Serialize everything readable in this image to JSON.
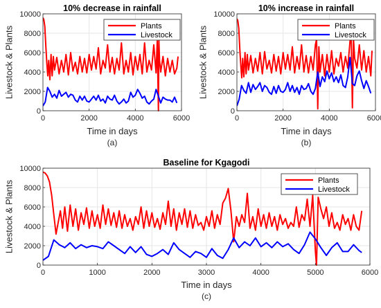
{
  "colors": {
    "plants": "#ff0000",
    "livestock": "#0000ff",
    "grid": "#e6e6e6",
    "axis": "#262626"
  },
  "chart_data": [
    {
      "id": "a",
      "type": "line",
      "title": "10% decrease in rainfall",
      "caption": "(a)",
      "xlabel": "Time in days",
      "ylabel": "Livestock & Plants",
      "xlim": [
        0,
        6000
      ],
      "ylim": [
        0,
        10000
      ],
      "xticks": [
        "0",
        "2000",
        "4000",
        "6000"
      ],
      "yticks": [
        "0",
        "2000",
        "4000",
        "6000",
        "8000",
        "10000"
      ],
      "grid": true,
      "legend_position": "top-right",
      "series": [
        {
          "name": "Plants",
          "color": "#ff0000",
          "x": [
            0,
            40,
            80,
            130,
            170,
            210,
            250,
            300,
            350,
            400,
            450,
            500,
            600,
            700,
            800,
            900,
            1000,
            1100,
            1200,
            1300,
            1400,
            1500,
            1600,
            1700,
            1800,
            1900,
            2000,
            2100,
            2200,
            2300,
            2400,
            2500,
            2600,
            2700,
            2800,
            2900,
            3000,
            3100,
            3200,
            3300,
            3400,
            3500,
            3600,
            3700,
            3800,
            3900,
            4000,
            4100,
            4200,
            4300,
            4400,
            4500,
            4600,
            4700,
            4800,
            4900,
            4950,
            5000,
            5020,
            5050,
            5100,
            5200,
            5300,
            5400,
            5500,
            5600,
            5700,
            5800,
            5850
          ],
          "y": [
            9600,
            9400,
            8700,
            6500,
            4800,
            3600,
            5200,
            3200,
            5800,
            3600,
            5600,
            4200,
            5500,
            3800,
            5200,
            4000,
            5800,
            3700,
            6000,
            4100,
            5000,
            3800,
            5600,
            4000,
            5400,
            3900,
            5800,
            4200,
            5600,
            4300,
            6500,
            3800,
            5200,
            4400,
            6800,
            4000,
            5500,
            3800,
            5400,
            4200,
            7000,
            3800,
            5200,
            4000,
            6000,
            3700,
            5600,
            4200,
            5800,
            3800,
            7000,
            4000,
            5200,
            4200,
            6800,
            3900,
            7200,
            0,
            7400,
            5200,
            4000,
            5600,
            3600,
            5400,
            4000,
            5200,
            3800,
            4400,
            5600
          ]
        },
        {
          "name": "Livestock",
          "color": "#0000ff",
          "x": [
            0,
            100,
            200,
            300,
            400,
            500,
            600,
            700,
            800,
            900,
            1000,
            1100,
            1200,
            1300,
            1400,
            1500,
            1600,
            1700,
            1800,
            1900,
            2000,
            2100,
            2200,
            2300,
            2400,
            2500,
            2600,
            2700,
            2800,
            2900,
            3000,
            3100,
            3200,
            3300,
            3400,
            3500,
            3600,
            3700,
            3800,
            3900,
            4000,
            4100,
            4200,
            4300,
            4400,
            4500,
            4600,
            4700,
            4800,
            4900,
            5000,
            5100,
            5200,
            5300,
            5400,
            5500,
            5600,
            5700,
            5800
          ],
          "y": [
            500,
            900,
            2400,
            2000,
            1400,
            1700,
            1300,
            2100,
            1500,
            1700,
            1900,
            1400,
            1700,
            1600,
            1100,
            900,
            1500,
            1100,
            1500,
            1000,
            900,
            1200,
            1500,
            1100,
            1600,
            1000,
            1200,
            800,
            1500,
            1200,
            1100,
            1600,
            1000,
            700,
            900,
            1200,
            800,
            1000,
            1900,
            1400,
            1600,
            2200,
            1800,
            1300,
            1500,
            900,
            700,
            1000,
            1200,
            2200,
            1500,
            800,
            1400,
            1200,
            1100,
            1100,
            900,
            1400,
            800
          ]
        }
      ]
    },
    {
      "id": "b",
      "type": "line",
      "title": "10% increase in rainfall",
      "caption": "(b)",
      "xlabel": "Time in days",
      "ylabel": "Livestock & Plants",
      "xlim": [
        0,
        6000
      ],
      "ylim": [
        0,
        10000
      ],
      "xticks": [
        "0",
        "2000",
        "4000",
        "6000"
      ],
      "yticks": [
        "0",
        "2000",
        "4000",
        "6000",
        "8000",
        "10000"
      ],
      "grid": true,
      "legend_position": "top-right",
      "series": [
        {
          "name": "Plants",
          "color": "#ff0000",
          "x": [
            0,
            40,
            80,
            130,
            170,
            210,
            250,
            300,
            350,
            400,
            450,
            500,
            600,
            700,
            800,
            900,
            1000,
            1100,
            1200,
            1300,
            1400,
            1500,
            1600,
            1700,
            1800,
            1900,
            2000,
            2100,
            2200,
            2300,
            2400,
            2500,
            2600,
            2700,
            2800,
            2900,
            3000,
            3100,
            3200,
            3300,
            3400,
            3450,
            3500,
            3550,
            3600,
            3700,
            3800,
            3900,
            4000,
            4100,
            4200,
            4300,
            4400,
            4500,
            4600,
            4700,
            4800,
            4900,
            4950,
            5000,
            5050,
            5100,
            5200,
            5300,
            5400,
            5500,
            5600,
            5700,
            5800,
            5850
          ],
          "y": [
            9500,
            9300,
            8500,
            6200,
            4600,
            3400,
            5400,
            3500,
            6000,
            3800,
            5800,
            4200,
            5700,
            3900,
            5400,
            4100,
            6000,
            3800,
            6100,
            4300,
            5200,
            3900,
            5800,
            4100,
            5600,
            3800,
            6000,
            4300,
            5800,
            4200,
            6600,
            3900,
            5600,
            4300,
            6800,
            4000,
            5700,
            3900,
            5600,
            4200,
            6800,
            7400,
            200,
            6600,
            4000,
            5800,
            3600,
            5800,
            4000,
            6200,
            3800,
            5400,
            4600,
            6000,
            4000,
            5600,
            4400,
            7200,
            7600,
            300,
            7400,
            5400,
            4400,
            6800,
            4200,
            6200,
            4000,
            5600,
            3600,
            6200
          ]
        },
        {
          "name": "Livestock",
          "color": "#0000ff",
          "x": [
            0,
            100,
            200,
            300,
            400,
            500,
            600,
            700,
            800,
            900,
            1000,
            1100,
            1200,
            1300,
            1400,
            1500,
            1600,
            1700,
            1800,
            1900,
            2000,
            2100,
            2200,
            2300,
            2400,
            2500,
            2600,
            2700,
            2800,
            2900,
            3000,
            3100,
            3200,
            3300,
            3400,
            3500,
            3600,
            3700,
            3800,
            3900,
            4000,
            4100,
            4200,
            4300,
            4400,
            4500,
            4600,
            4700,
            4800,
            4900,
            5000,
            5100,
            5200,
            5300,
            5400,
            5500,
            5600,
            5700,
            5800
          ],
          "y": [
            500,
            1200,
            2600,
            2100,
            1800,
            2900,
            1900,
            2700,
            2200,
            2500,
            2900,
            2000,
            2600,
            2400,
            1900,
            1700,
            2500,
            1800,
            2600,
            2000,
            1900,
            2200,
            2900,
            2000,
            2600,
            1900,
            2400,
            1700,
            2600,
            2200,
            2300,
            2800,
            2000,
            1700,
            2300,
            4000,
            2500,
            3500,
            3000,
            4100,
            3300,
            3900,
            3000,
            3500,
            2900,
            3700,
            2600,
            2400,
            3500,
            5500,
            2800,
            2600,
            3600,
            4100,
            3100,
            2300,
            3100,
            2500,
            1800
          ]
        }
      ]
    },
    {
      "id": "c",
      "type": "line",
      "title": "Baseline for Kgagodi",
      "caption": "(c)",
      "xlabel": "Time in days",
      "ylabel": "Livestock & Plants",
      "xlim": [
        0,
        6000
      ],
      "ylim": [
        0,
        10000
      ],
      "xticks": [
        "0",
        "1000",
        "2000",
        "3000",
        "4000",
        "5000",
        "6000"
      ],
      "yticks": [
        "0",
        "2000",
        "4000",
        "6000",
        "8000",
        "10000"
      ],
      "grid": true,
      "legend_position": "top-right",
      "series": [
        {
          "name": "Plants",
          "color": "#ff0000",
          "x": [
            0,
            40,
            80,
            120,
            160,
            200,
            240,
            280,
            320,
            360,
            400,
            450,
            500,
            550,
            600,
            650,
            700,
            750,
            800,
            850,
            900,
            950,
            1000,
            1050,
            1100,
            1150,
            1200,
            1250,
            1300,
            1350,
            1400,
            1450,
            1500,
            1550,
            1600,
            1650,
            1700,
            1750,
            1800,
            1850,
            1900,
            1950,
            2000,
            2050,
            2100,
            2150,
            2200,
            2250,
            2300,
            2350,
            2400,
            2450,
            2500,
            2550,
            2600,
            2650,
            2700,
            2750,
            2800,
            2850,
            2900,
            2950,
            3000,
            3050,
            3100,
            3150,
            3200,
            3250,
            3300,
            3350,
            3400,
            3450,
            3500,
            3550,
            3600,
            3650,
            3700,
            3750,
            3800,
            3850,
            3900,
            3950,
            4000,
            4050,
            4100,
            4150,
            4200,
            4250,
            4300,
            4350,
            4400,
            4450,
            4500,
            4550,
            4600,
            4650,
            4700,
            4750,
            4800,
            4850,
            4900,
            4950,
            5000,
            5020,
            5050,
            5100,
            5150,
            5200,
            5250,
            5300,
            5350,
            5400,
            5450,
            5500,
            5550,
            5600,
            5650,
            5700,
            5750,
            5800,
            5850
          ],
          "y": [
            9600,
            9500,
            9200,
            8600,
            7200,
            5200,
            3200,
            4400,
            5600,
            3800,
            6000,
            3500,
            6200,
            4000,
            5800,
            3600,
            5400,
            4200,
            5900,
            3800,
            5600,
            4000,
            5200,
            3800,
            6200,
            4200,
            5800,
            4100,
            5400,
            3900,
            5600,
            3800,
            5200,
            4000,
            4800,
            3600,
            5000,
            4200,
            6000,
            3800,
            5600,
            4000,
            5400,
            3900,
            4800,
            3700,
            5400,
            4200,
            6600,
            4000,
            5800,
            3600,
            5400,
            4200,
            5800,
            3900,
            5600,
            3800,
            5200,
            4100,
            4400,
            3600,
            5000,
            4000,
            5600,
            3800,
            5200,
            4200,
            6400,
            6900,
            7900,
            5600,
            2400,
            5000,
            4000,
            5200,
            4400,
            7400,
            3800,
            5000,
            3600,
            5800,
            4000,
            5200,
            3800,
            5400,
            4000,
            5000,
            3600,
            5200,
            4200,
            4800,
            3800,
            4400,
            4000,
            6000,
            3900,
            5200,
            4600,
            6800,
            4000,
            7200,
            1400,
            0,
            7000,
            5800,
            4800,
            6000,
            4000,
            5400,
            3800,
            4400,
            3600,
            5200,
            4200,
            4800,
            3600,
            5200,
            4000,
            3600,
            5600
          ]
        },
        {
          "name": "Livestock",
          "color": "#0000ff",
          "x": [
            0,
            100,
            200,
            300,
            400,
            500,
            600,
            700,
            800,
            900,
            1000,
            1100,
            1200,
            1300,
            1400,
            1500,
            1600,
            1700,
            1800,
            1900,
            2000,
            2100,
            2200,
            2300,
            2400,
            2500,
            2600,
            2700,
            2800,
            2900,
            3000,
            3100,
            3200,
            3300,
            3400,
            3500,
            3600,
            3700,
            3800,
            3900,
            4000,
            4100,
            4200,
            4300,
            4400,
            4500,
            4600,
            4700,
            4800,
            4900,
            5000,
            5100,
            5200,
            5300,
            5400,
            5500,
            5600,
            5700,
            5800,
            5850
          ],
          "y": [
            500,
            900,
            2600,
            2100,
            1800,
            2300,
            1700,
            2100,
            1800,
            2000,
            1900,
            1700,
            2400,
            2000,
            1600,
            1200,
            1900,
            1300,
            1900,
            1100,
            900,
            1200,
            1600,
            1100,
            2300,
            1600,
            1200,
            800,
            1400,
            1200,
            800,
            1700,
            1000,
            700,
            1600,
            2800,
            1800,
            2400,
            2000,
            2800,
            1900,
            2300,
            1800,
            2400,
            1900,
            2200,
            1600,
            1200,
            2100,
            3400,
            2700,
            1800,
            1000,
            1800,
            2300,
            1400,
            1400,
            2100,
            1500,
            1300
          ]
        }
      ]
    }
  ]
}
